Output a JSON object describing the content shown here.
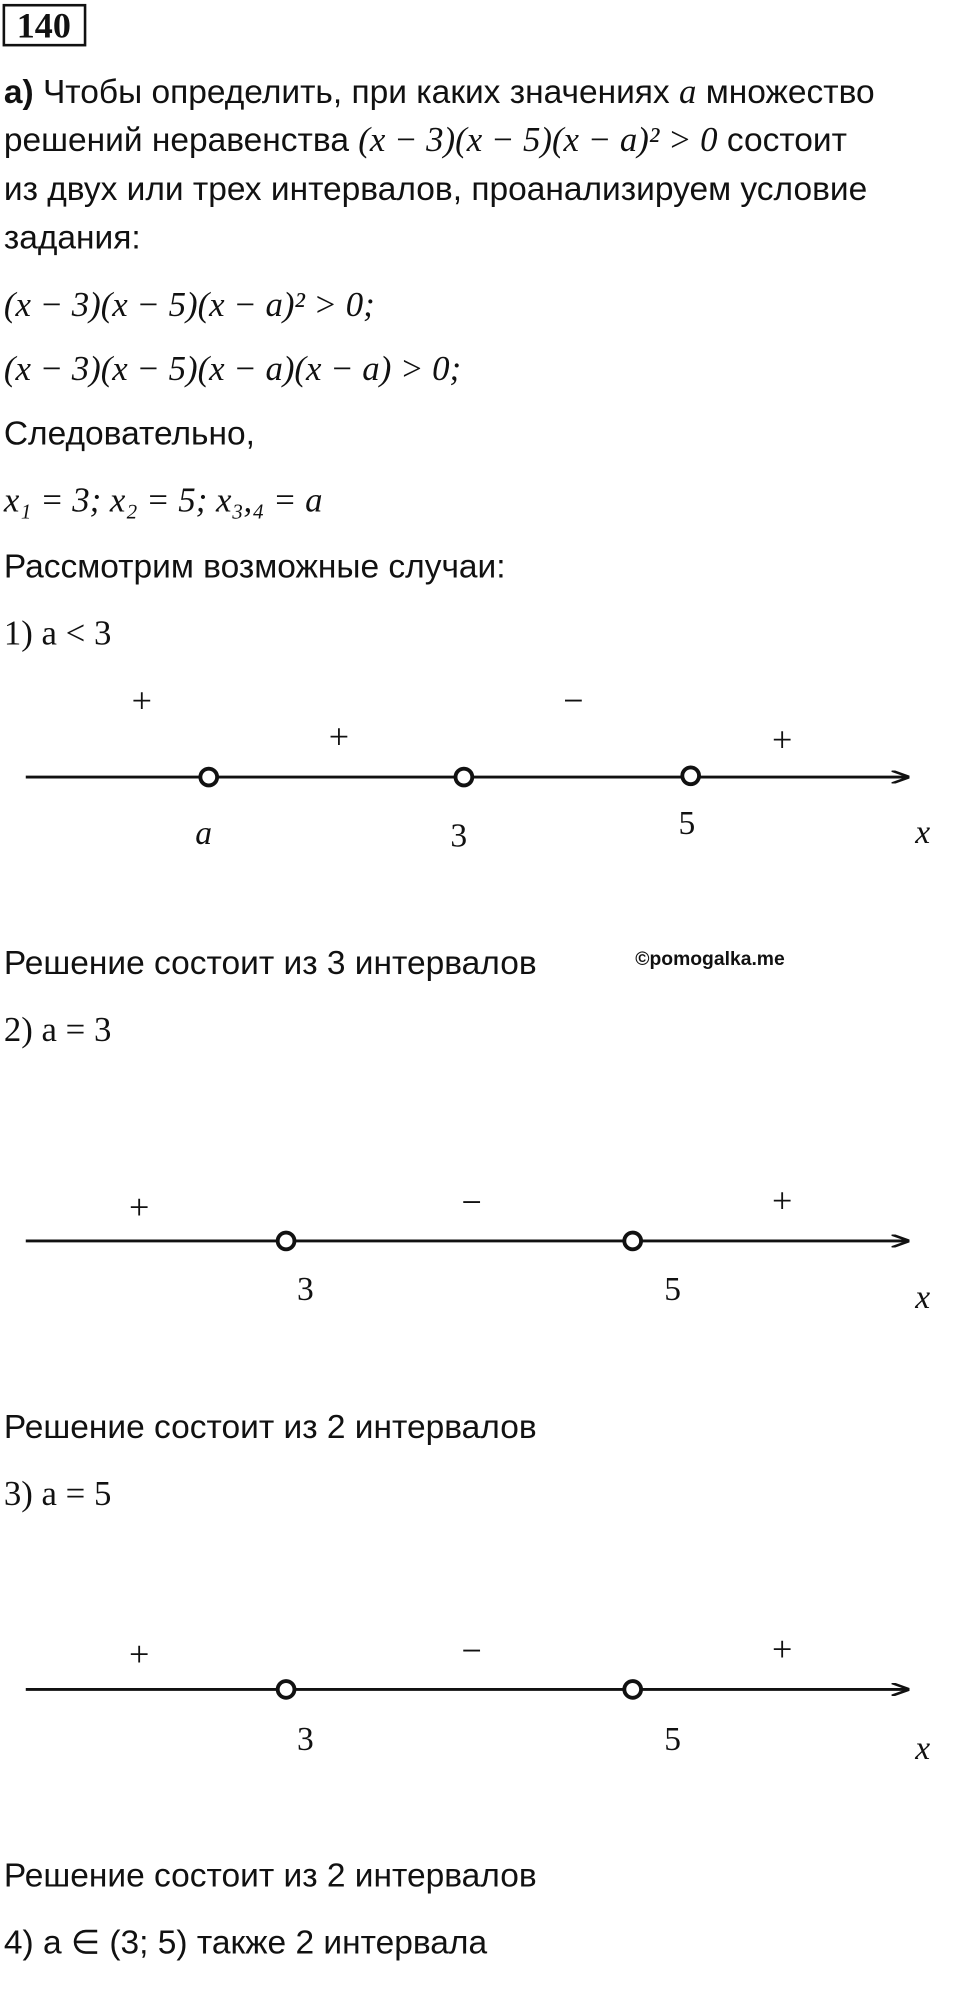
{
  "header": {
    "number": "140"
  },
  "intro_lines": [
    [
      "а)",
      "Чтобы определить, при каких значениях",
      "a",
      "множество"
    ],
    [
      "решений неравенства",
      "(x − 3)(x − 5)(x − a)² > 0",
      "состоит"
    ],
    [
      "из двух или трех интервалов, проанализируем условие"
    ],
    [
      "задания:"
    ]
  ],
  "equations": [
    "(x − 3)(x − 5)(x − a)² > 0;",
    "(x − 3)(x − 5)(x − a)(x − a) > 0;"
  ],
  "consequence": "Следовательно,",
  "roots": "x₁ = 3; x₂ = 5; x₃,₄ = a",
  "cases_intro": "Рассмотрим возможные случаи:",
  "cases": [
    {
      "title": "1) a < 3",
      "signs": [
        "+",
        "+",
        "−",
        "+"
      ],
      "points": [
        "a",
        "3",
        "5"
      ],
      "axis_label": "x",
      "result": "Решение состоит из 3 интервалов"
    },
    {
      "title": "2) a = 3",
      "signs": [
        "+",
        "−",
        "+"
      ],
      "points": [
        "3",
        "5"
      ],
      "axis_label": "x",
      "result": "Решение состоит из 2 интервалов"
    },
    {
      "title": "3)  a = 5",
      "signs": [
        "+",
        "−",
        "+"
      ],
      "points": [
        "3",
        "5"
      ],
      "axis_label": "x",
      "result": "Решение состоит из 2 интервалов"
    }
  ],
  "watermark": "©pomogalka.me",
  "final": "4) a ∈ (3; 5) также 2 интервала"
}
